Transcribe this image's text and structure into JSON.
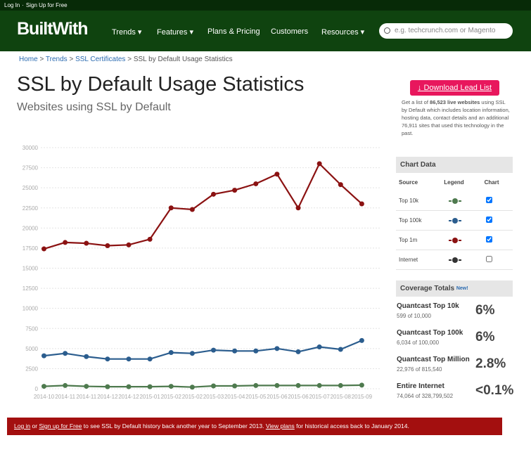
{
  "top_bar": {
    "login": "Log In",
    "separator": "·",
    "signup": "Sign Up for Free"
  },
  "nav": {
    "logo": "BuiltWith",
    "items": [
      "Trends ▾",
      "Features ▾",
      "Plans & Pricing",
      "Customers",
      "Resources ▾"
    ],
    "search_placeholder": "e.g. techcrunch.com or Magento"
  },
  "breadcrumb": [
    "Home",
    "Trends",
    "SSL Certificates",
    "SSL by Default Usage Statistics"
  ],
  "breadcrumb_separator": ">",
  "header": {
    "title": "SSL by Default Usage Statistics",
    "subtitle": "Websites using SSL by Default"
  },
  "lead": {
    "button": "Download Lead List",
    "text_before": "Get a list of ",
    "count": "86,523 live websites",
    "text_after": " using SSL by Default which includes location information, hosting data, contact details and an additional 76,911 sites that used this technology in the past."
  },
  "chart_data": {
    "type": "line",
    "categories": [
      "2014-10",
      "2014-11",
      "2014-11",
      "2014-12",
      "2014-12",
      "2015-01",
      "2015-02",
      "2015-02",
      "2015-03",
      "2015-04",
      "2015-05",
      "2015-06",
      "2015-06",
      "2015-07",
      "2015-08",
      "2015-09"
    ],
    "series": [
      {
        "name": "Top 1m",
        "color": "#8b1212",
        "values": [
          17400,
          18200,
          18100,
          17800,
          17900,
          18600,
          22500,
          22300,
          24200,
          24700,
          25500,
          26700,
          22500,
          28000,
          25400,
          23000
        ]
      },
      {
        "name": "Top 100k",
        "color": "#2b5d8e",
        "values": [
          4100,
          4400,
          4000,
          3700,
          3700,
          3700,
          4500,
          4400,
          4800,
          4700,
          4700,
          5000,
          4600,
          5200,
          4900,
          6000
        ]
      },
      {
        "name": "Top 10k",
        "color": "#4e7a4e",
        "values": [
          300,
          400,
          300,
          250,
          250,
          250,
          300,
          200,
          350,
          350,
          400,
          400,
          400,
          400,
          400,
          450
        ]
      }
    ],
    "ylim": [
      0,
      30000
    ],
    "yticks": [
      0,
      2500,
      5000,
      7500,
      10000,
      12500,
      15000,
      17500,
      20000,
      22500,
      25000,
      27500,
      30000
    ],
    "grid": true
  },
  "chart_table": {
    "title": "Chart Data",
    "columns": [
      "Source",
      "Legend",
      "Chart"
    ],
    "rows": [
      {
        "source": "Top 10k",
        "color": "#4e7a4e",
        "checked": true
      },
      {
        "source": "Top 100k",
        "color": "#2b5d8e",
        "checked": true
      },
      {
        "source": "Top 1m",
        "color": "#8b1212",
        "checked": true
      },
      {
        "source": "Internet",
        "color": "#333333",
        "checked": false
      }
    ]
  },
  "coverage": {
    "title": "Coverage Totals",
    "badge": "New!",
    "items": [
      {
        "name": "Quantcast Top 10k",
        "detail": "599 of 10,000",
        "percent": "6%"
      },
      {
        "name": "Quantcast Top 100k",
        "detail": "6,034 of 100,000",
        "percent": "6%"
      },
      {
        "name": "Quantcast Top Million",
        "detail": "22,976 of 815,540",
        "percent": "2.8%"
      },
      {
        "name": "Entire Internet",
        "detail": "74,064 of 328,799,502",
        "percent": "<0.1%"
      }
    ]
  },
  "banner": {
    "login": "Log in",
    "or": " or ",
    "signup": "Sign up for Free",
    "middle": " to see SSL by Default history back another year to September 2013. ",
    "plans": "View plans",
    "end": " for historical access back to January 2014."
  }
}
